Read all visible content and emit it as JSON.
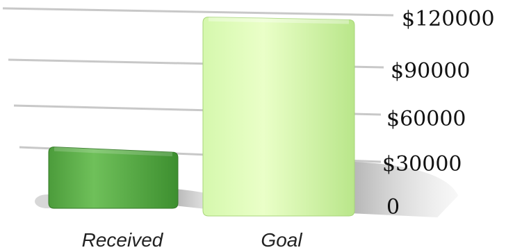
{
  "chart_data": {
    "type": "bar",
    "categories": [
      "Received",
      "Goal"
    ],
    "values": [
      31000,
      117000
    ],
    "ylim": [
      0,
      120000
    ],
    "yticks": [
      {
        "value": 0,
        "label": "0"
      },
      {
        "value": 30000,
        "label": "$30000"
      },
      {
        "value": 60000,
        "label": "$60000"
      },
      {
        "value": 90000,
        "label": "$90000"
      },
      {
        "value": 120000,
        "label": "$120000"
      }
    ],
    "grid": true,
    "colors": {
      "received_top": "#6fc05a",
      "received_bottom": "#3d8f2f",
      "goal_top": "#eaffc8",
      "goal_bottom": "#c8f09a",
      "grid": "#c8c8c8"
    }
  }
}
